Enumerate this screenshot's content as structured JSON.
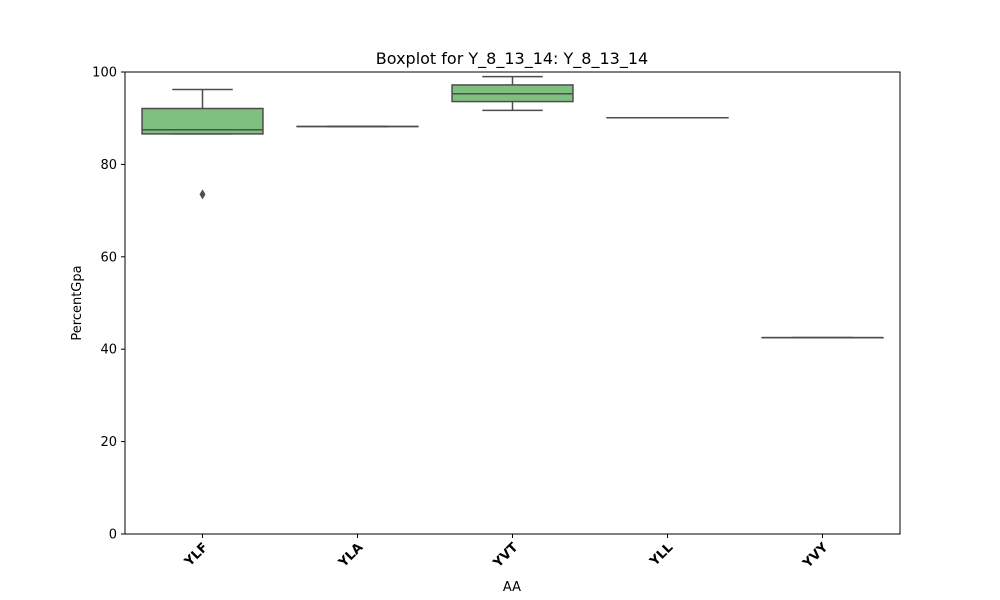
{
  "chart_data": {
    "type": "box",
    "title": "Boxplot for Y_8_13_14: Y_8_13_14",
    "xlabel": "AA",
    "ylabel": "PercentGpa",
    "ylim": [
      0,
      100
    ],
    "yticks": [
      0,
      20,
      40,
      60,
      80,
      100
    ],
    "categories": [
      "YLF",
      "YLA",
      "YVT",
      "YLL",
      "YVY"
    ],
    "boxes": [
      {
        "category": "YLF",
        "whisker_low": 86.6,
        "q1": 86.6,
        "median": 87.5,
        "q3": 92.1,
        "whisker_high": 96.2,
        "outliers": [
          73.5
        ]
      },
      {
        "category": "YLA",
        "whisker_low": 88.2,
        "q1": 88.2,
        "median": 88.2,
        "q3": 88.2,
        "whisker_high": 88.2,
        "outliers": []
      },
      {
        "category": "YVT",
        "whisker_low": 91.7,
        "q1": 93.6,
        "median": 95.3,
        "q3": 97.2,
        "whisker_high": 99.0,
        "outliers": []
      },
      {
        "category": "YLL",
        "whisker_low": 90.1,
        "q1": 90.1,
        "median": 90.1,
        "q3": 90.1,
        "whisker_high": 90.1,
        "outliers": []
      },
      {
        "category": "YVY",
        "whisker_low": 42.5,
        "q1": 42.5,
        "median": 42.5,
        "q3": 42.5,
        "whisker_high": 42.5,
        "outliers": []
      }
    ],
    "colors": {
      "box_fill": "#7fbf7f",
      "line": "#4d4d4d"
    },
    "grid": false,
    "legend": "none"
  }
}
